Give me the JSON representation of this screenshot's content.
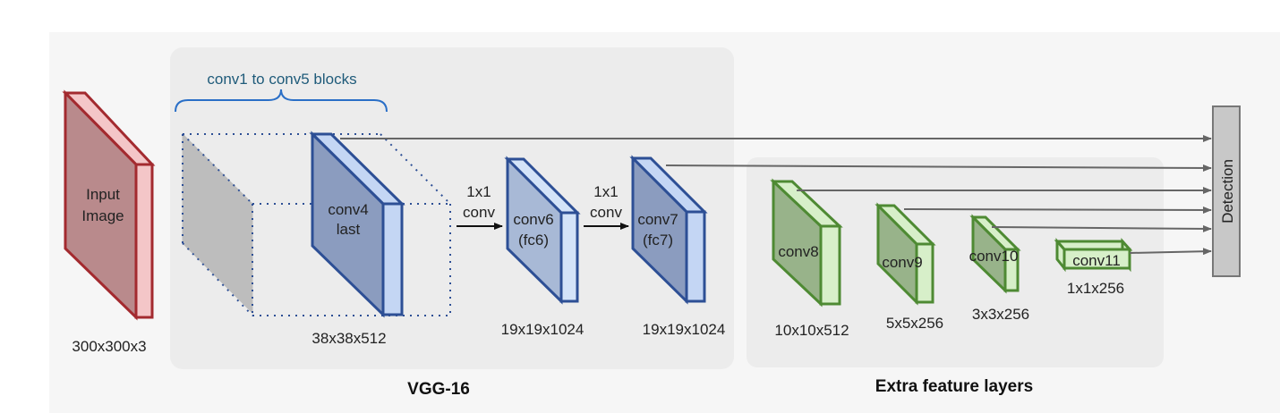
{
  "header_text": "",
  "input": {
    "line1": "Input",
    "line2": "Image",
    "dims": "300x300x3"
  },
  "vgg": {
    "title": "VGG-16",
    "blocks_label": "conv1 to conv5 blocks",
    "conv4": {
      "line1": "conv4",
      "line2": "last",
      "dims": "38x38x512"
    },
    "op1": {
      "line1": "1x1",
      "line2": "conv"
    },
    "conv6": {
      "line1": "conv6",
      "line2": "(fc6)",
      "dims": "19x19x1024"
    },
    "op2": {
      "line1": "1x1",
      "line2": "conv"
    },
    "conv7": {
      "line1": "conv7",
      "line2": "(fc7)",
      "dims": "19x19x1024"
    }
  },
  "extra": {
    "title": "Extra feature layers",
    "conv8": {
      "label": "conv8",
      "dims": "10x10x512"
    },
    "conv9": {
      "label": "conv9",
      "dims": "5x5x256"
    },
    "conv10": {
      "label": "conv10",
      "dims": "3x3x256"
    },
    "conv11": {
      "label": "conv11",
      "dims": "1x1x256"
    }
  },
  "detection": {
    "label": "Detection"
  },
  "colors": {
    "input_front": "#b98a8c",
    "input_side": "#f4c6c8",
    "input_stroke": "#a32a2f",
    "vgg_front": "#8b9cbf",
    "vgg_side": "#c4d6f4",
    "vgg_stroke": "#2d4f95",
    "fc_front": "#a8b9d6",
    "fc_side": "#d3e3f8",
    "extra_front": "#98b38a",
    "extra_side": "#d7efc9",
    "extra_stroke": "#4e8a33",
    "panel": "#efefef",
    "arrow": "#666666",
    "brace": "#2a6fc7",
    "detection_fill": "#c8c8c8"
  }
}
